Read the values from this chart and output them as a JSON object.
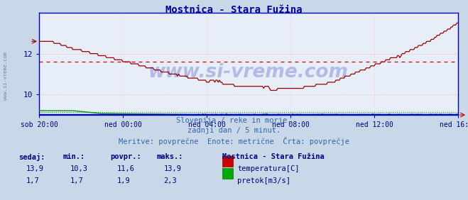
{
  "title": "Mostnica - Stara Fužina",
  "title_color": "#000099",
  "bg_color": "#c8d8e8",
  "plot_bg_color": "#e8eef8",
  "grid_color": "#ffaaaa",
  "grid_vcolor": "#ffcccc",
  "avg_temp_color": "#cc0000",
  "temp_color": "#990000",
  "flow_color": "#009900",
  "height_color": "#0000cc",
  "spine_color": "#0000cc",
  "tick_color": "#000080",
  "x_labels": [
    "sob 20:00",
    "ned 00:00",
    "ned 04:00",
    "ned 08:00",
    "ned 12:00",
    "ned 16:00"
  ],
  "x_ticks_pos": [
    0,
    72,
    144,
    216,
    288,
    360
  ],
  "x_total": 360,
  "y_ticks": [
    10,
    12
  ],
  "y_min": 9.0,
  "y_max": 14.0,
  "temp_avg": 11.6,
  "flow_y": 9.1,
  "flow_avg_y": 9.15,
  "subtitle1": "Slovenija / reke in morje.",
  "subtitle2": "zadnji dan / 5 minut.",
  "subtitle3": "Meritve: povprečne  Enote: metrične  Črta: povprečje",
  "subtitle_color": "#3366aa",
  "table_header_color": "#000080",
  "table_data_color": "#000080",
  "legend_title": "Mostnica - Stara Fužina",
  "temp_label": "temperatura[C]",
  "flow_label": "pretok[m3/s]",
  "temp_sedaj": "13,9",
  "temp_min": "10,3",
  "temp_povpr": "11,6",
  "temp_maks": "13,9",
  "flow_sedaj": "1,7",
  "flow_min": "1,7",
  "flow_povpr": "1,9",
  "flow_maks": "2,3",
  "n_points": 361,
  "watermark": "www.si-vreme.com",
  "watermark_color": "#0000aa",
  "side_label": "www.si-vreme.com"
}
